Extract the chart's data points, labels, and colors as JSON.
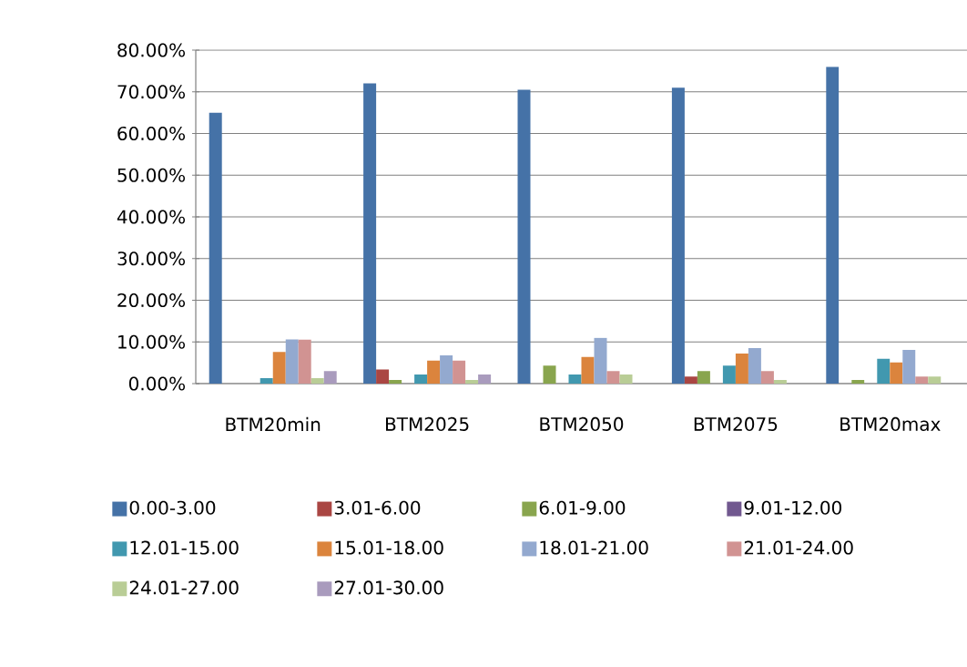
{
  "chart_data": {
    "type": "bar",
    "categories": [
      "BTM20min",
      "BTM2025",
      "BTM2050",
      "BTM2075",
      "BTM20max"
    ],
    "series": [
      {
        "name": "0.00-3.00",
        "color": "#4572a7",
        "values": [
          65,
          72,
          70.5,
          71,
          76
        ]
      },
      {
        "name": "3.01-6.00",
        "color": "#aa4643",
        "values": [
          0,
          3.4,
          0,
          1.7,
          0
        ]
      },
      {
        "name": "6.01-9.00",
        "color": "#89a54e",
        "values": [
          0,
          0.9,
          4.3,
          3.0,
          0.9
        ]
      },
      {
        "name": "9.01-12.00",
        "color": "#71588f",
        "values": [
          0,
          0,
          0,
          0,
          0
        ]
      },
      {
        "name": "12.01-15.00",
        "color": "#4198af",
        "values": [
          1.3,
          2.2,
          2.2,
          4.3,
          6.0
        ]
      },
      {
        "name": "15.01-18.00",
        "color": "#db843d",
        "values": [
          7.6,
          5.5,
          6.4,
          7.2,
          5.1
        ]
      },
      {
        "name": "18.01-21.00",
        "color": "#93a9cf",
        "values": [
          10.6,
          6.8,
          11.0,
          8.5,
          8.1
        ]
      },
      {
        "name": "21.01-24.00",
        "color": "#d19392",
        "values": [
          10.6,
          5.5,
          3.0,
          3.0,
          1.7
        ]
      },
      {
        "name": "24.01-27.00",
        "color": "#b9cd96",
        "values": [
          1.3,
          0.9,
          2.2,
          0.9,
          1.7
        ]
      },
      {
        "name": "27.01-30.00",
        "color": "#a99bbd",
        "values": [
          3.0,
          2.2,
          0,
          0,
          0
        ]
      }
    ],
    "ylim": [
      0,
      80
    ],
    "yticks": [
      {
        "value": 0,
        "label": "0.00%"
      },
      {
        "value": 10,
        "label": "10.00%"
      },
      {
        "value": 20,
        "label": "20.00%"
      },
      {
        "value": 30,
        "label": "30.00%"
      },
      {
        "value": 40,
        "label": "40.00%"
      },
      {
        "value": 50,
        "label": "50.00%"
      },
      {
        "value": 60,
        "label": "60.00%"
      },
      {
        "value": 70,
        "label": "70.00%"
      },
      {
        "value": 80,
        "label": "80.00%"
      }
    ],
    "grid": "y",
    "legend": "bottom"
  }
}
